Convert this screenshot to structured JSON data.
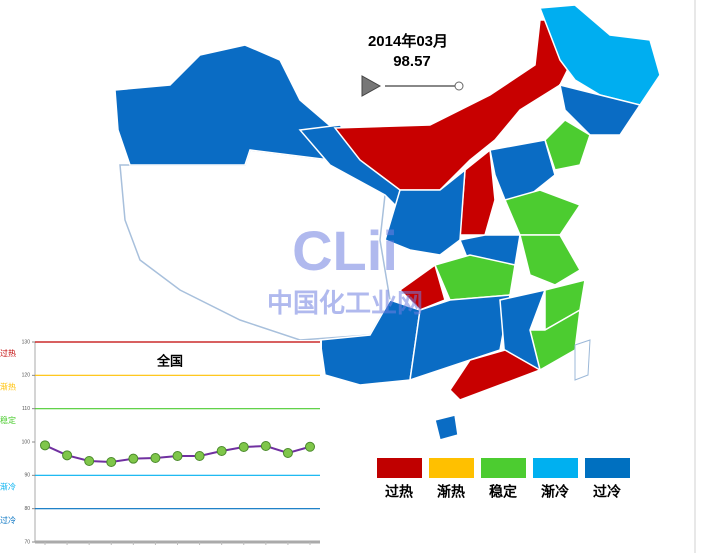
{
  "header": {
    "date": "2014年03月",
    "value": "98.57"
  },
  "watermark": {
    "logo": "CLii",
    "name": "中国化工业网"
  },
  "map_legend": [
    {
      "label": "过热",
      "color": "#c00000"
    },
    {
      "label": "渐热",
      "color": "#ffc000"
    },
    {
      "label": "稳定",
      "color": "#4ccc30"
    },
    {
      "label": "渐冷",
      "color": "#00b0f0"
    },
    {
      "label": "过冷",
      "color": "#0070c0"
    }
  ],
  "chart_data": {
    "type": "line",
    "title": "全国",
    "categories": [
      null,
      null,
      null,
      null,
      null,
      null,
      null,
      null,
      null,
      null,
      null,
      null,
      null
    ],
    "series": [
      {
        "color": "#7030a0",
        "values": [
          99,
          96,
          94.3,
          94,
          95,
          95.2,
          95.8,
          95.8,
          97.3,
          98.5,
          98.8,
          96.7,
          98.57
        ]
      }
    ],
    "ylim": [
      70,
      130
    ],
    "yticks": [
      70,
      80,
      90,
      100,
      110,
      120,
      130
    ],
    "bands": [
      {
        "value": 130,
        "label": "过热",
        "color": "#c00000"
      },
      {
        "value": 120,
        "label": "渐热",
        "color": "#ffc000"
      },
      {
        "value": 110,
        "label": "稳定",
        "color": "#4ccc30"
      },
      {
        "value": 90,
        "label": "渐冷",
        "color": "#00b0f0"
      },
      {
        "value": 80,
        "label": "过冷",
        "color": "#0070c0"
      }
    ]
  }
}
